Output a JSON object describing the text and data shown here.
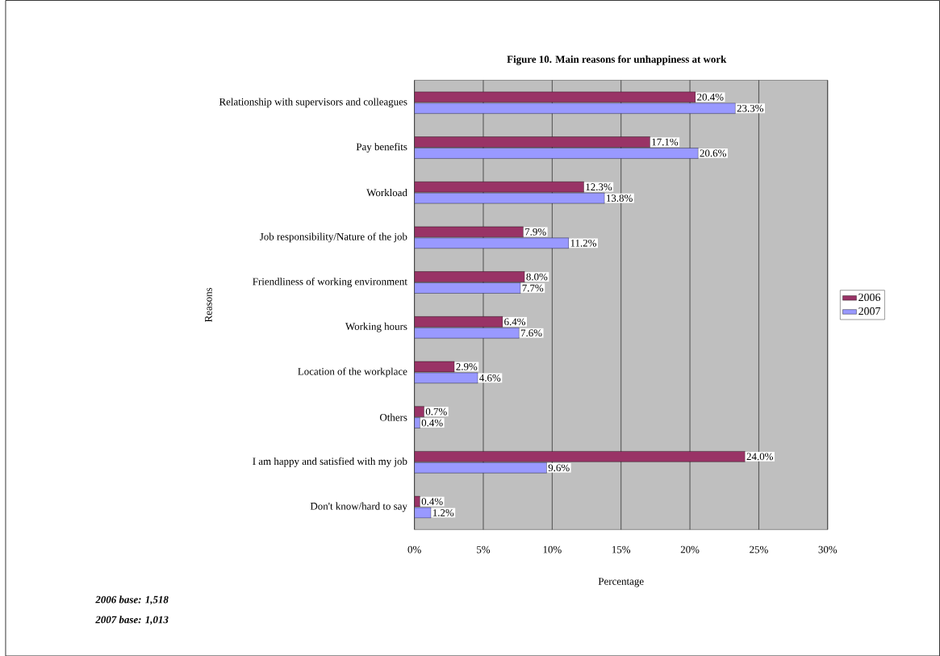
{
  "chart_data": {
    "type": "bar",
    "orientation": "horizontal",
    "title": "Figure 10. Main reasons for unhappiness at work",
    "categories": [
      "Relationship with supervisors and colleagues",
      "Pay benefits",
      "Workload",
      "Job responsibility/Nature of the job",
      "Friendliness of working environment",
      "Working hours",
      "Location of the workplace",
      "Others",
      "I am happy and satisfied with my job",
      "Don't know/hard to say"
    ],
    "series": [
      {
        "name": "2006",
        "color": "#993366",
        "values": [
          20.4,
          17.1,
          12.3,
          7.9,
          8.0,
          6.4,
          2.9,
          0.7,
          24.0,
          0.4
        ],
        "value_labels": [
          "20.4%",
          "17.1%",
          "12.3%",
          "7.9%",
          "8.0%",
          "6.4%",
          "2.9%",
          "0.7%",
          "24.0%",
          "0.4%"
        ]
      },
      {
        "name": "2007",
        "color": "#9999ff",
        "values": [
          23.3,
          20.6,
          13.8,
          11.2,
          7.7,
          7.6,
          4.6,
          0.4,
          9.6,
          1.2
        ],
        "value_labels": [
          "23.3%",
          "20.6%",
          "13.8%",
          "11.2%",
          "7.7%",
          "7.6%",
          "4.6%",
          "0.4%",
          "9.6%",
          "1.2%"
        ]
      }
    ],
    "xlim": [
      0,
      30
    ],
    "xticks": [
      {
        "value": 0,
        "label": "0%"
      },
      {
        "value": 5,
        "label": "5%"
      },
      {
        "value": 10,
        "label": "10%"
      },
      {
        "value": 15,
        "label": "15%"
      },
      {
        "value": 20,
        "label": "20%"
      },
      {
        "value": 25,
        "label": "25%"
      },
      {
        "value": 30,
        "label": "30%"
      }
    ],
    "xlabel": "Percentage",
    "ylabel": "Reasons",
    "grid": "x",
    "legend": "right",
    "annotations": [
      "2006 base: 1,518",
      "2007 base: 1,013"
    ]
  }
}
